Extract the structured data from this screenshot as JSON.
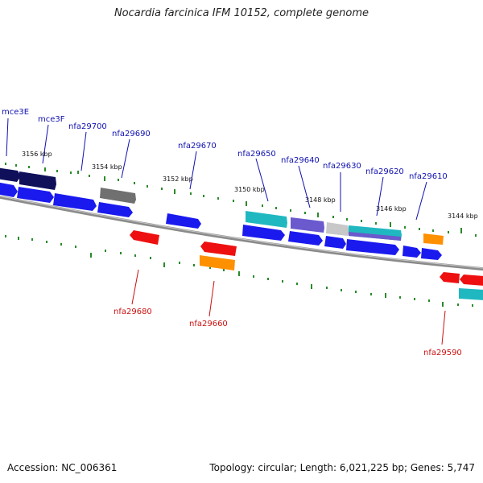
{
  "title": "Nocardia farcinica IFM 10152, complete genome",
  "accession": "Accession: NC_006361",
  "summary": "Topology: circular; Length: 6,021,225 bp; Genes: 5,747",
  "colors": {
    "forward_label": "#1010b0",
    "reverse_label": "#cc1010",
    "tick": "#2a8a2a",
    "backbone": "#8a8a8a",
    "blue": "#1a1aee",
    "navy": "#10105a",
    "red": "#ee1010",
    "orange": "#ff9000",
    "cyan": "#20c0c8",
    "purple": "#6a5acd",
    "gray": "#808080",
    "lightgray": "#c8c8c8"
  },
  "kbp_labels": [
    "3156 kbp",
    "3154 kbp",
    "3152 kbp",
    "3150 kbp",
    "3148 kbp",
    "3146 kbp",
    "3144 kbp"
  ],
  "forward_gene_labels": [
    "mce3E",
    "mce3F",
    "nfa29700",
    "nfa29690",
    "nfa29670",
    "nfa29650",
    "nfa29640",
    "nfa29630",
    "nfa29620",
    "nfa29610"
  ],
  "reverse_gene_labels": [
    "nfa29680",
    "nfa29660",
    "nfa29590"
  ]
}
